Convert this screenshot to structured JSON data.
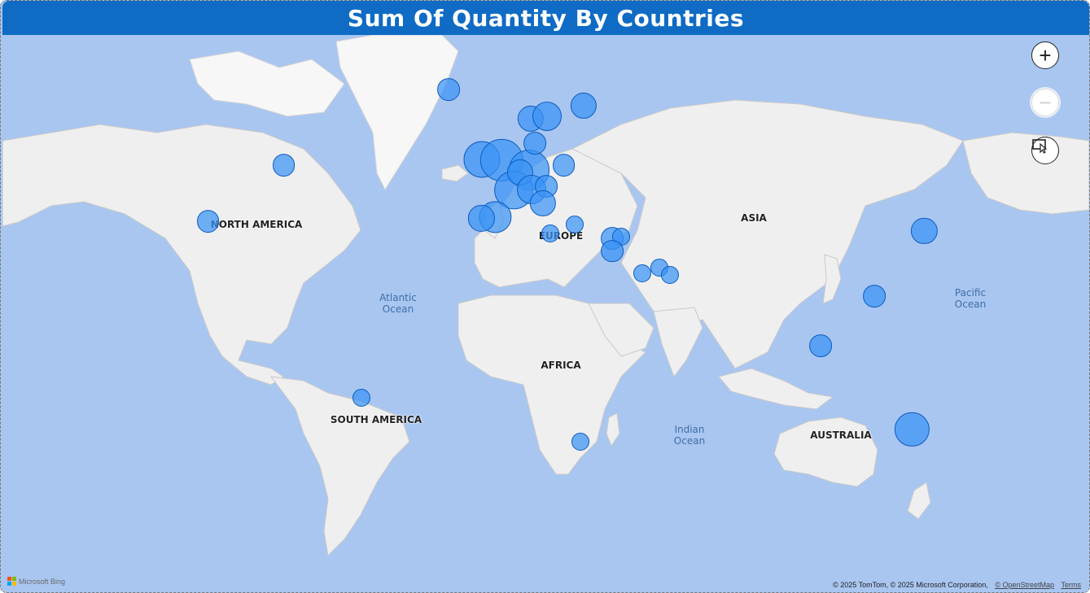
{
  "title": "Sum Of Quantity By Countries",
  "controls": {
    "zoom_in_label": "+",
    "zoom_out_label": "−"
  },
  "region_labels": {
    "north_america": "NORTH AMERICA",
    "south_america": "SOUTH AMERICA",
    "europe": "EUROPE",
    "asia": "ASIA",
    "africa": "AFRICA",
    "australia": "AUSTRALIA"
  },
  "ocean_labels": {
    "atlantic": "Atlantic\nOcean",
    "pacific": "Pacific\nOcean",
    "indian": "Indian\nOcean"
  },
  "footer": {
    "bing": "Microsoft Bing",
    "attribution": "© 2025 TomTom, © 2025 Microsoft Corporation,",
    "osm_link": "© OpenStreetMap",
    "terms_link": "Terms"
  },
  "colors": {
    "title_bar": "#0f6bc4",
    "bubble_fill": "#3a93f5",
    "bubble_stroke": "#0c5bbf",
    "ocean": "#a9c6f0",
    "land": "#efefef"
  },
  "map_data": {
    "type": "bubble-map",
    "measure": "Sum Of Quantity",
    "points": [
      {
        "location": "Canada",
        "lon": -73.5,
        "lat": 52.0,
        "size": 2
      },
      {
        "location": "USA",
        "lon": -98.5,
        "lat": 39.0,
        "size": 2
      },
      {
        "location": "Brazil",
        "lon": -47.9,
        "lat": -15.8,
        "size": 1
      },
      {
        "location": "Iceland",
        "lon": -19.0,
        "lat": 64.9,
        "size": 2
      },
      {
        "location": "Ireland",
        "lon": -8.0,
        "lat": 53.2,
        "size": 7
      },
      {
        "location": "UK",
        "lon": -1.5,
        "lat": 53.0,
        "size": 10
      },
      {
        "location": "Germany",
        "lon": 7.5,
        "lat": 51.0,
        "size": 9
      },
      {
        "location": "France",
        "lon": 2.5,
        "lat": 46.6,
        "size": 8
      },
      {
        "location": "Belgium",
        "lon": 4.5,
        "lat": 50.5,
        "size": 3
      },
      {
        "location": "Switzerland",
        "lon": 8.2,
        "lat": 46.8,
        "size": 4
      },
      {
        "location": "Austria",
        "lon": 13.3,
        "lat": 47.5,
        "size": 2
      },
      {
        "location": "Denmark",
        "lon": 9.5,
        "lat": 56.2,
        "size": 2
      },
      {
        "location": "Norway",
        "lon": 8.0,
        "lat": 60.5,
        "size": 3
      },
      {
        "location": "Sweden",
        "lon": 13.5,
        "lat": 60.8,
        "size": 4
      },
      {
        "location": "Finland",
        "lon": 25.5,
        "lat": 62.5,
        "size": 3
      },
      {
        "location": "Poland",
        "lon": 19.0,
        "lat": 52.0,
        "size": 2
      },
      {
        "location": "Spain",
        "lon": -3.7,
        "lat": 40.2,
        "size": 5
      },
      {
        "location": "Portugal",
        "lon": -8.2,
        "lat": 39.8,
        "size": 3
      },
      {
        "location": "Italy",
        "lon": 12.0,
        "lat": 43.5,
        "size": 3
      },
      {
        "location": "Malta",
        "lon": 14.4,
        "lat": 35.9,
        "size": 1
      },
      {
        "location": "Greece",
        "lon": 22.5,
        "lat": 38.3,
        "size": 1
      },
      {
        "location": "Lebanon",
        "lon": 35.0,
        "lat": 34.5,
        "size": 2
      },
      {
        "location": "Syria",
        "lon": 38.0,
        "lat": 35.0,
        "size": 1
      },
      {
        "location": "Israel",
        "lon": 35.0,
        "lat": 31.0,
        "size": 2
      },
      {
        "location": "Bahrain",
        "lon": 50.5,
        "lat": 26.1,
        "size": 1
      },
      {
        "location": "UAE",
        "lon": 54.0,
        "lat": 24.0,
        "size": 1
      },
      {
        "location": "Saudi Arabia",
        "lon": 45.0,
        "lat": 24.5,
        "size": 1
      },
      {
        "location": "Japan",
        "lon": 138.0,
        "lat": 36.5,
        "size": 3
      },
      {
        "location": "Philippines",
        "lon": 121.5,
        "lat": 17.5,
        "size": 2
      },
      {
        "location": "Singapore",
        "lon": 103.8,
        "lat": 1.3,
        "size": 2
      },
      {
        "location": "South Africa",
        "lon": 24.5,
        "lat": -29.0,
        "size": 1
      },
      {
        "location": "Australia",
        "lon": 134.0,
        "lat": -25.5,
        "size": 6
      }
    ]
  }
}
